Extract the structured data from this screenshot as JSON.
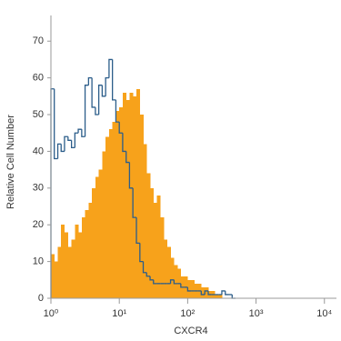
{
  "chart_data": {
    "type": "histogram",
    "x_label": "CXCR4",
    "y_label": "Relative Cell Number",
    "x_log": true,
    "bins": [
      1,
      1.12,
      1.26,
      1.41,
      1.58,
      1.78,
      2,
      2.24,
      2.51,
      2.82,
      3.16,
      3.55,
      3.98,
      4.47,
      5.01,
      5.62,
      6.31,
      7.08,
      7.94,
      8.91,
      10,
      11.2,
      12.6,
      14.1,
      15.8,
      17.8,
      20,
      22.4,
      25.1,
      28.2,
      31.6,
      35.5,
      39.8,
      44.7,
      50.1,
      56.2,
      63.1,
      70.8,
      79.4,
      89.1,
      100,
      112,
      126,
      141,
      158,
      178,
      200,
      224,
      251,
      282,
      316,
      355,
      398,
      447,
      501
    ],
    "series": [
      {
        "style": "filled",
        "color": "#f7a21b",
        "values": [
          12,
          10,
          14,
          20,
          18,
          14,
          16,
          20,
          18,
          22,
          24,
          26,
          30,
          33,
          35,
          40,
          44,
          46,
          48,
          51,
          52,
          56,
          54,
          56,
          55,
          57,
          50,
          42,
          34,
          30,
          26,
          28,
          22,
          16,
          14,
          11,
          9,
          8,
          6,
          6,
          5,
          5,
          4,
          4,
          3,
          3,
          2,
          2,
          1,
          1,
          0,
          0,
          0,
          0
        ]
      },
      {
        "style": "outline",
        "color": "#2b5d8a",
        "values": [
          57,
          38,
          42,
          40,
          44,
          43,
          41,
          45,
          46,
          44,
          58,
          60,
          52,
          50,
          58,
          55,
          60,
          65,
          54,
          48,
          45,
          40,
          37,
          30,
          22,
          15,
          10,
          7,
          6,
          5,
          4,
          4,
          4,
          4,
          4,
          5,
          4,
          4,
          3,
          3,
          2,
          2,
          2,
          2,
          1,
          2,
          1,
          1,
          1,
          1,
          2,
          1,
          1,
          0
        ]
      }
    ],
    "xlim": [
      1,
      15000
    ],
    "xticks": [
      {
        "value": 1,
        "label": "10⁰"
      },
      {
        "value": 10,
        "label": "10¹"
      },
      {
        "value": 100,
        "label": "10²"
      },
      {
        "value": 1000,
        "label": "10³"
      },
      {
        "value": 10000,
        "label": "10⁴"
      }
    ],
    "ylim": [
      0,
      76
    ],
    "yticks": [
      0,
      10,
      20,
      30,
      40,
      50,
      60,
      70
    ]
  }
}
